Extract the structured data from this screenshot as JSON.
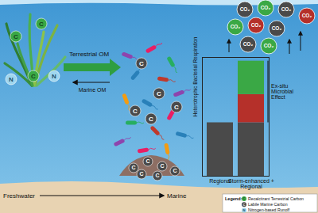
{
  "diagram": {
    "flow": {
      "from": "Freshwater",
      "to": "Marine"
    },
    "arrows": {
      "terrestrial": "Terrestrial OM",
      "marine": "Marine OM"
    },
    "symbols": {
      "carbon": "C",
      "nitrogen": "N"
    },
    "co2": {
      "label": "CO₂",
      "colors": [
        "#4a4a4a",
        "#3aa845",
        "#4a4a4a",
        "#b5302a",
        "#3aa845",
        "#b5302a",
        "#4a4a4a",
        "#4a4a4a",
        "#3aa845"
      ]
    },
    "legend": {
      "title": "Legend:",
      "items": [
        {
          "symbol": "C",
          "label": "Recalcitrant Terrestrial Carbon",
          "color": "#3aa845"
        },
        {
          "symbol": "C",
          "label": "Labile Marine Carbon",
          "color": "#4a4a4a"
        },
        {
          "symbol": "N",
          "label": "Nitrogen-based Runoff",
          "color": "#9fd6ee"
        }
      ]
    }
  },
  "chart_data": {
    "type": "bar",
    "stacked": true,
    "y_label": "Heterotrophic Bacterial Respiration",
    "categories": [
      "Regional",
      "Storm-enhanced + Regional"
    ],
    "series": [
      {
        "color": "#4a4a4a",
        "values": [
          72,
          72
        ]
      },
      {
        "color": "#b5302a",
        "values": [
          0,
          38
        ]
      },
      {
        "color": "#3aa845",
        "values": [
          0,
          45
        ]
      }
    ],
    "ylim": [
      0,
      160
    ],
    "tick_labels": false,
    "annotations": [
      {
        "text": "Ex-situ Microbial Effect"
      }
    ]
  }
}
